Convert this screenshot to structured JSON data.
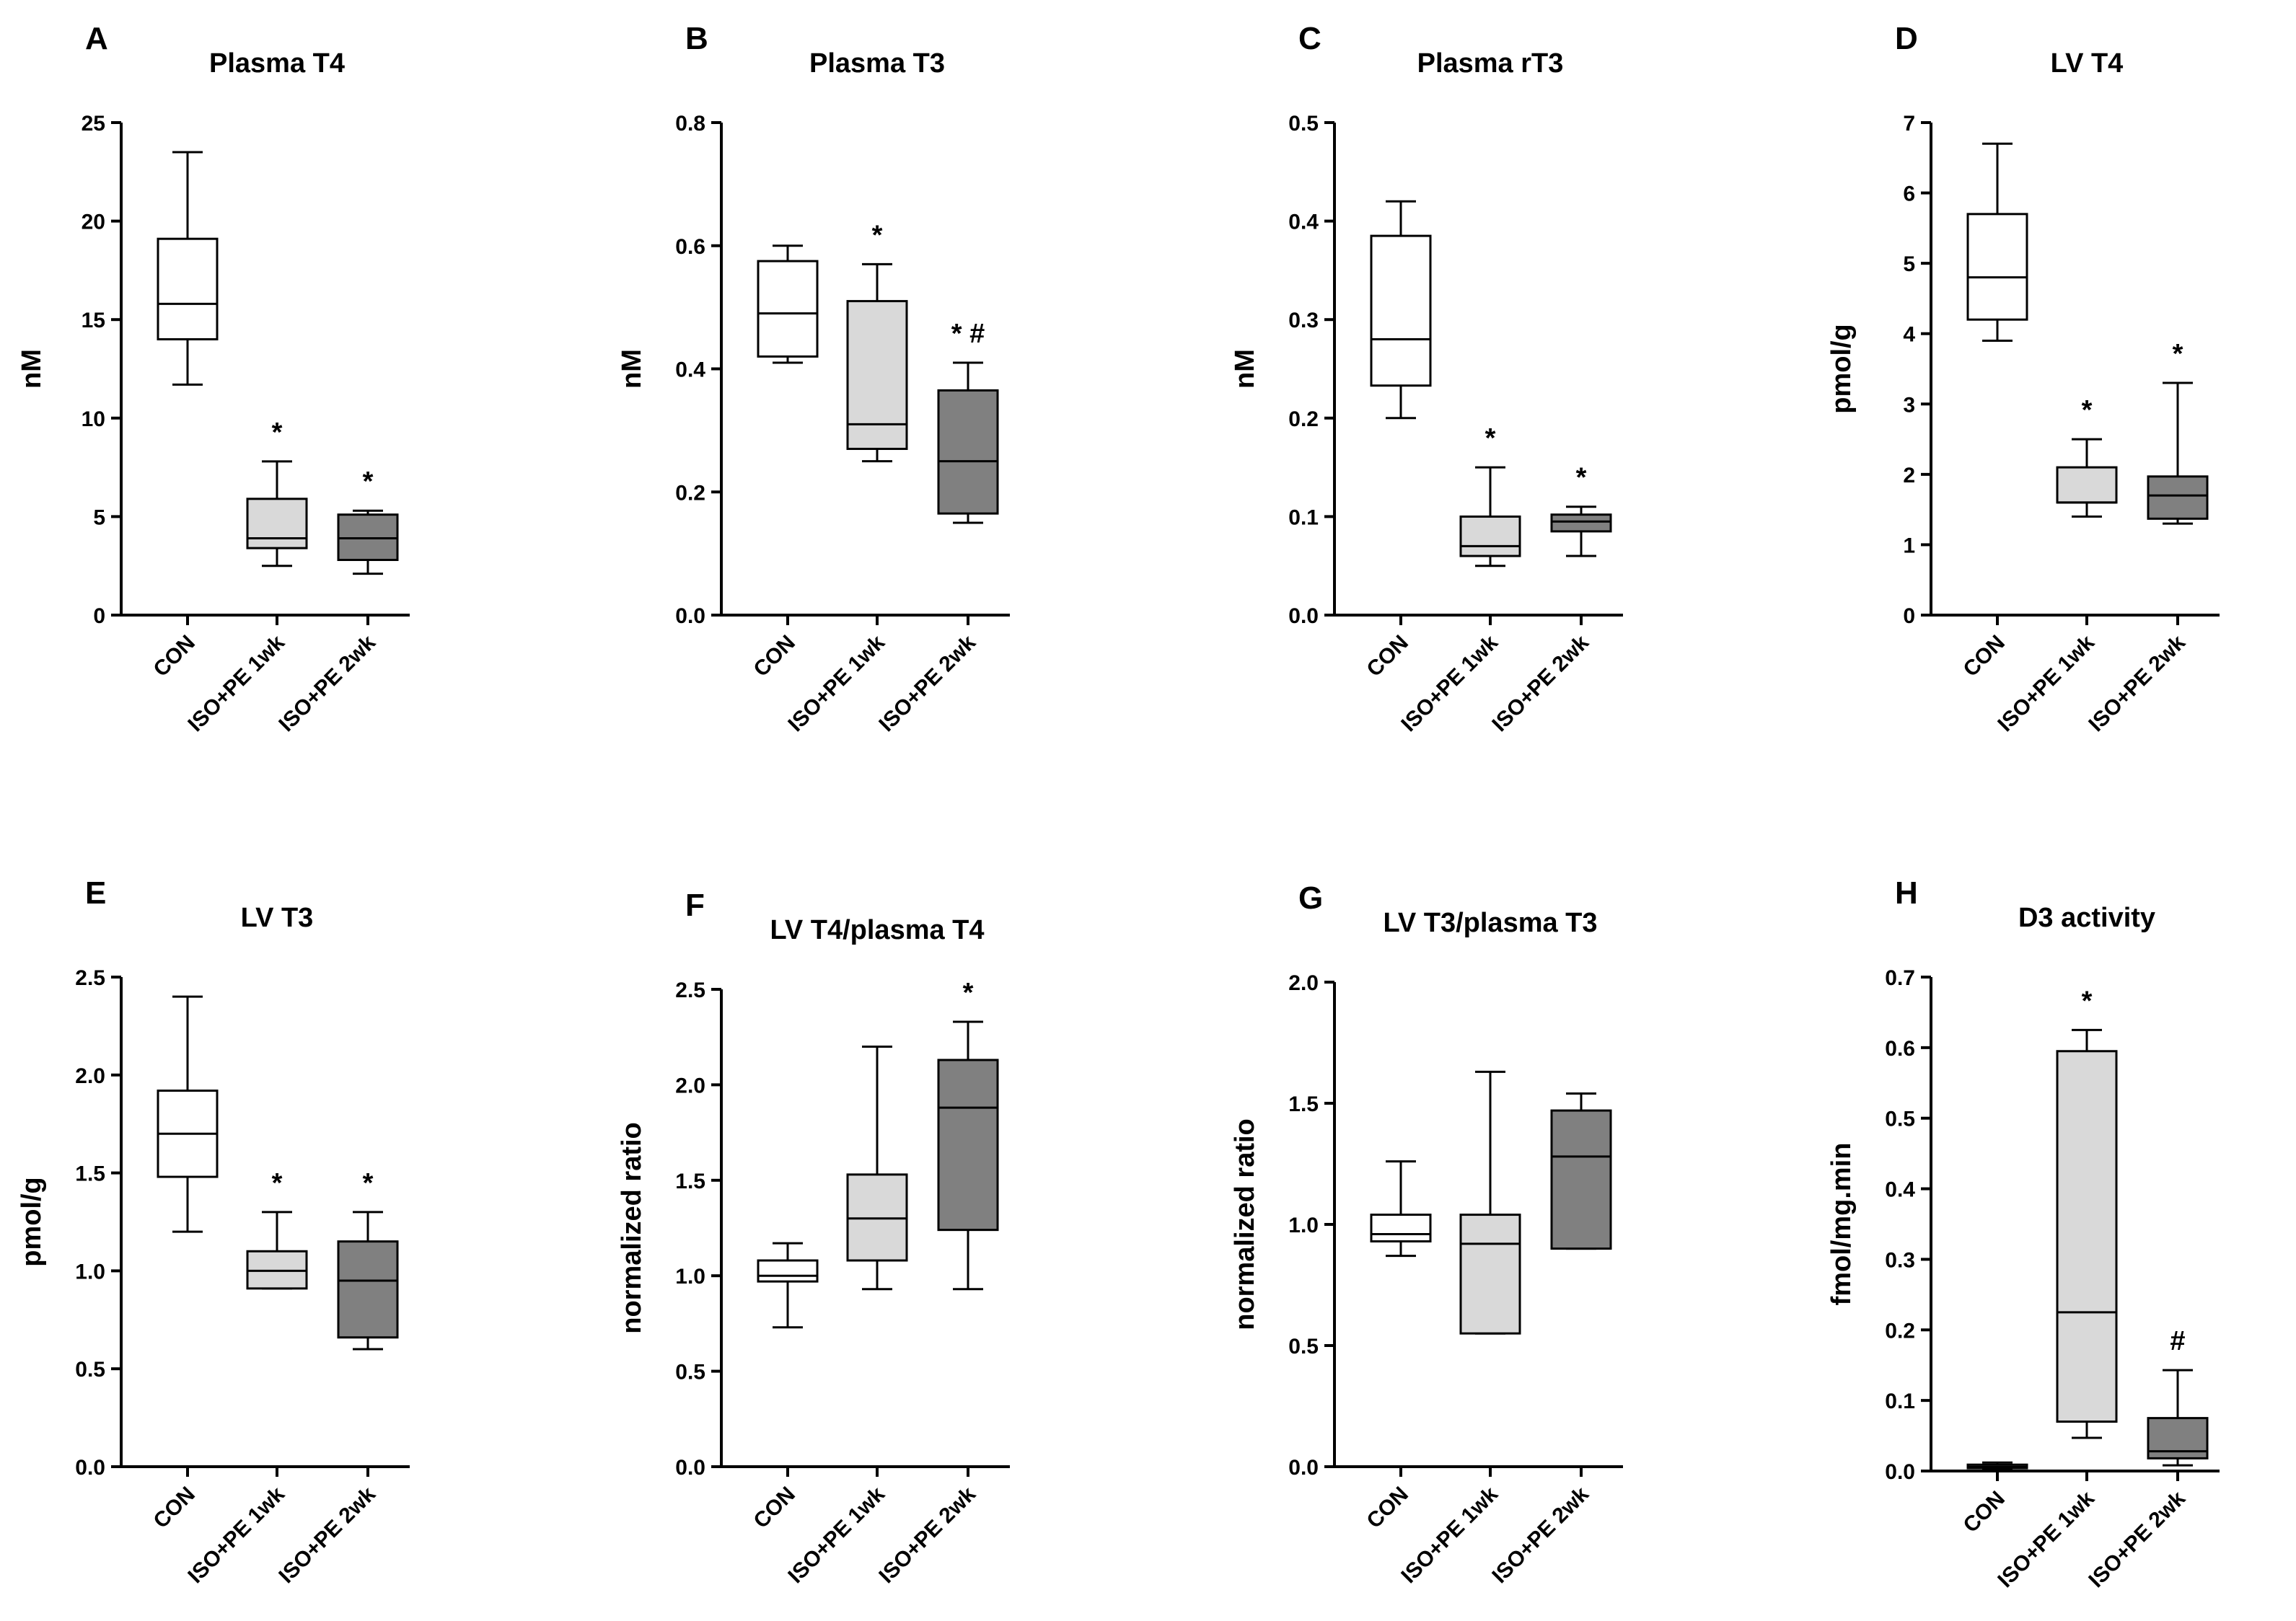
{
  "colors": {
    "CON": "#ffffff",
    "ISO+PE 1wk": "#d9d9d9",
    "ISO+PE 2wk": "#808080",
    "stroke": "#000000"
  },
  "chart_data": [
    {
      "type": "box",
      "panel": "A",
      "title": "Plasma T4",
      "ylabel": "nM",
      "ylim": [
        0,
        25
      ],
      "yticks": [
        "0",
        "5",
        "10",
        "15",
        "20",
        "25"
      ],
      "categories": [
        "CON",
        "ISO+PE 1wk",
        "ISO+PE 2wk"
      ],
      "boxes": [
        {
          "min": 11.7,
          "q1": 14.0,
          "median": 15.8,
          "q3": 19.1,
          "max": 23.5,
          "sig": ""
        },
        {
          "min": 2.5,
          "q1": 3.4,
          "median": 3.9,
          "q3": 5.9,
          "max": 7.8,
          "sig": "*"
        },
        {
          "min": 2.1,
          "q1": 2.8,
          "median": 3.9,
          "q3": 5.1,
          "max": 5.3,
          "sig": "*"
        }
      ]
    },
    {
      "type": "box",
      "panel": "B",
      "title": "Plasma T3",
      "ylabel": "nM",
      "ylim": [
        0,
        0.8
      ],
      "yticks": [
        "0.0",
        "0.2",
        "0.4",
        "0.6",
        "0.8"
      ],
      "categories": [
        "CON",
        "ISO+PE 1wk",
        "ISO+PE 2wk"
      ],
      "boxes": [
        {
          "min": 0.41,
          "q1": 0.42,
          "median": 0.49,
          "q3": 0.575,
          "max": 0.6,
          "sig": ""
        },
        {
          "min": 0.25,
          "q1": 0.27,
          "median": 0.31,
          "q3": 0.51,
          "max": 0.57,
          "sig": "*"
        },
        {
          "min": 0.15,
          "q1": 0.165,
          "median": 0.25,
          "q3": 0.365,
          "max": 0.41,
          "sig": "* #"
        }
      ]
    },
    {
      "type": "box",
      "panel": "C",
      "title": "Plasma rT3",
      "ylabel": "nM",
      "ylim": [
        0,
        0.5
      ],
      "yticks": [
        "0.0",
        "0.1",
        "0.2",
        "0.3",
        "0.4",
        "0.5"
      ],
      "categories": [
        "CON",
        "ISO+PE 1wk",
        "ISO+PE 2wk"
      ],
      "boxes": [
        {
          "min": 0.2,
          "q1": 0.233,
          "median": 0.28,
          "q3": 0.385,
          "max": 0.42,
          "sig": ""
        },
        {
          "min": 0.05,
          "q1": 0.06,
          "median": 0.07,
          "q3": 0.1,
          "max": 0.15,
          "sig": "*"
        },
        {
          "min": 0.06,
          "q1": 0.085,
          "median": 0.095,
          "q3": 0.102,
          "max": 0.11,
          "sig": "*"
        }
      ]
    },
    {
      "type": "box",
      "panel": "D",
      "title": "LV T4",
      "ylabel": "pmol/g",
      "ylim": [
        0,
        7
      ],
      "yticks": [
        "0",
        "1",
        "2",
        "3",
        "4",
        "5",
        "6",
        "7"
      ],
      "categories": [
        "CON",
        "ISO+PE 1wk",
        "ISO+PE 2wk"
      ],
      "boxes": [
        {
          "min": 3.9,
          "q1": 4.2,
          "median": 4.8,
          "q3": 5.7,
          "max": 6.7,
          "sig": ""
        },
        {
          "min": 1.4,
          "q1": 1.6,
          "median": 1.6,
          "q3": 2.1,
          "max": 2.5,
          "sig": "*"
        },
        {
          "min": 1.3,
          "q1": 1.37,
          "median": 1.7,
          "q3": 1.97,
          "max": 3.3,
          "sig": "*"
        }
      ]
    },
    {
      "type": "box",
      "panel": "E",
      "title": "LV T3",
      "ylabel": "pmol/g",
      "ylim": [
        0,
        2.5
      ],
      "yticks": [
        "0.0",
        "0.5",
        "1.0",
        "1.5",
        "2.0",
        "2.5"
      ],
      "categories": [
        "CON",
        "ISO+PE 1wk",
        "ISO+PE 2wk"
      ],
      "boxes": [
        {
          "min": 1.2,
          "q1": 1.48,
          "median": 1.7,
          "q3": 1.92,
          "max": 2.4,
          "sig": ""
        },
        {
          "min": 0.91,
          "q1": 0.91,
          "median": 1.0,
          "q3": 1.1,
          "max": 1.3,
          "sig": "*"
        },
        {
          "min": 0.6,
          "q1": 0.66,
          "median": 0.95,
          "q3": 1.15,
          "max": 1.3,
          "sig": "*"
        }
      ]
    },
    {
      "type": "box",
      "panel": "F",
      "title": "LV T4/plasma T4",
      "ylabel": "normalized ratio",
      "ylim": [
        0,
        2.5
      ],
      "yticks": [
        "0.0",
        "0.5",
        "1.0",
        "1.5",
        "2.0",
        "2.5"
      ],
      "categories": [
        "CON",
        "ISO+PE 1wk",
        "ISO+PE 2wk"
      ],
      "boxes": [
        {
          "min": 0.73,
          "q1": 0.97,
          "median": 1.0,
          "q3": 1.08,
          "max": 1.17,
          "sig": ""
        },
        {
          "min": 0.93,
          "q1": 1.08,
          "median": 1.3,
          "q3": 1.53,
          "max": 2.2,
          "sig": ""
        },
        {
          "min": 0.93,
          "q1": 1.24,
          "median": 1.88,
          "q3": 2.13,
          "max": 2.33,
          "sig": "*"
        }
      ]
    },
    {
      "type": "box",
      "panel": "G",
      "title": "LV T3/plasma T3",
      "ylabel": "normalized ratio",
      "ylim": [
        0,
        2.0
      ],
      "yticks": [
        "0.0",
        "0.5",
        "1.0",
        "1.5",
        "2.0"
      ],
      "categories": [
        "CON",
        "ISO+PE 1wk",
        "ISO+PE 2wk"
      ],
      "boxes": [
        {
          "min": 0.87,
          "q1": 0.93,
          "median": 0.96,
          "q3": 1.04,
          "max": 1.26,
          "sig": ""
        },
        {
          "min": 0.55,
          "q1": 0.55,
          "median": 0.92,
          "q3": 1.04,
          "max": 1.63,
          "sig": ""
        },
        {
          "min": 0.9,
          "q1": 0.9,
          "median": 1.28,
          "q3": 1.47,
          "max": 1.54,
          "sig": ""
        }
      ]
    },
    {
      "type": "box",
      "panel": "H",
      "title": "D3 activity",
      "ylabel": "fmol/mg.min",
      "ylim": [
        0,
        0.7
      ],
      "yticks": [
        "0.0",
        "0.1",
        "0.2",
        "0.3",
        "0.4",
        "0.5",
        "0.6",
        "0.7"
      ],
      "categories": [
        "CON",
        "ISO+PE 1wk",
        "ISO+PE 2wk"
      ],
      "boxes": [
        {
          "min": 0.002,
          "q1": 0.004,
          "median": 0.006,
          "q3": 0.009,
          "max": 0.012,
          "sig": ""
        },
        {
          "min": 0.047,
          "q1": 0.07,
          "median": 0.225,
          "q3": 0.595,
          "max": 0.625,
          "sig": "*"
        },
        {
          "min": 0.008,
          "q1": 0.018,
          "median": 0.028,
          "q3": 0.075,
          "max": 0.143,
          "sig": "#"
        }
      ]
    }
  ]
}
